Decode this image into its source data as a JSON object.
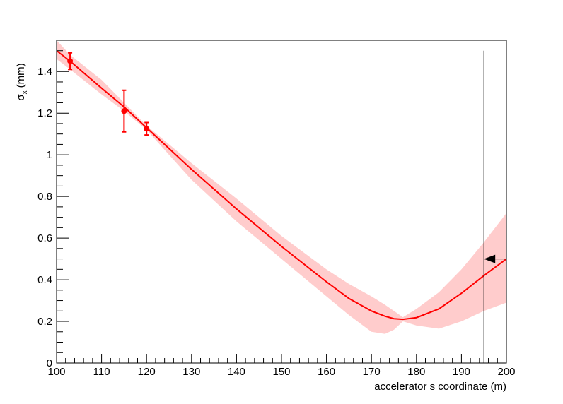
{
  "chart_data": {
    "type": "fit",
    "xlabel": "accelerator s coordinate (m)",
    "ylabel": {
      "symbol": "σ",
      "subscript": "x",
      "unit": "(mm)"
    },
    "xlim": [
      100,
      200
    ],
    "ylim": [
      0,
      1.55
    ],
    "xticks": [
      100,
      110,
      120,
      130,
      140,
      150,
      160,
      170,
      180,
      190,
      200
    ],
    "yticks": [
      0,
      0.2,
      0.4,
      0.6,
      0.8,
      1,
      1.2,
      1.4
    ],
    "fit": {
      "color": "#ff0000",
      "x": [
        100,
        103,
        110,
        115,
        120,
        130,
        140,
        150,
        160,
        165,
        170,
        173,
        175,
        177,
        180,
        185,
        190,
        195,
        200
      ],
      "values": [
        1.5,
        1.45,
        1.32,
        1.23,
        1.13,
        0.93,
        0.74,
        0.56,
        0.39,
        0.31,
        0.25,
        0.225,
        0.213,
        0.21,
        0.218,
        0.26,
        0.335,
        0.42,
        0.5
      ]
    },
    "band": {
      "color": "#ffcccc",
      "x": [
        100,
        103,
        110,
        115,
        120,
        130,
        140,
        150,
        160,
        165,
        170,
        173,
        175,
        177,
        180,
        185,
        190,
        195,
        200
      ],
      "upper": [
        1.55,
        1.48,
        1.36,
        1.25,
        1.14,
        0.96,
        0.79,
        0.61,
        0.45,
        0.38,
        0.32,
        0.28,
        0.25,
        0.22,
        0.26,
        0.34,
        0.45,
        0.58,
        0.72
      ],
      "lower": [
        1.46,
        1.41,
        1.29,
        1.21,
        1.12,
        0.88,
        0.68,
        0.5,
        0.32,
        0.23,
        0.15,
        0.14,
        0.16,
        0.2,
        0.18,
        0.165,
        0.2,
        0.25,
        0.29
      ]
    },
    "points": {
      "color": "#ff0000",
      "x": [
        103,
        115,
        120
      ],
      "values": [
        1.45,
        1.21,
        1.125
      ],
      "errors": [
        0.04,
        0.1,
        0.03
      ]
    },
    "marker_line": {
      "x": 195,
      "y": [
        0,
        1.5
      ]
    },
    "arrow": {
      "x": [
        200,
        195
      ],
      "y": 0.5
    }
  }
}
